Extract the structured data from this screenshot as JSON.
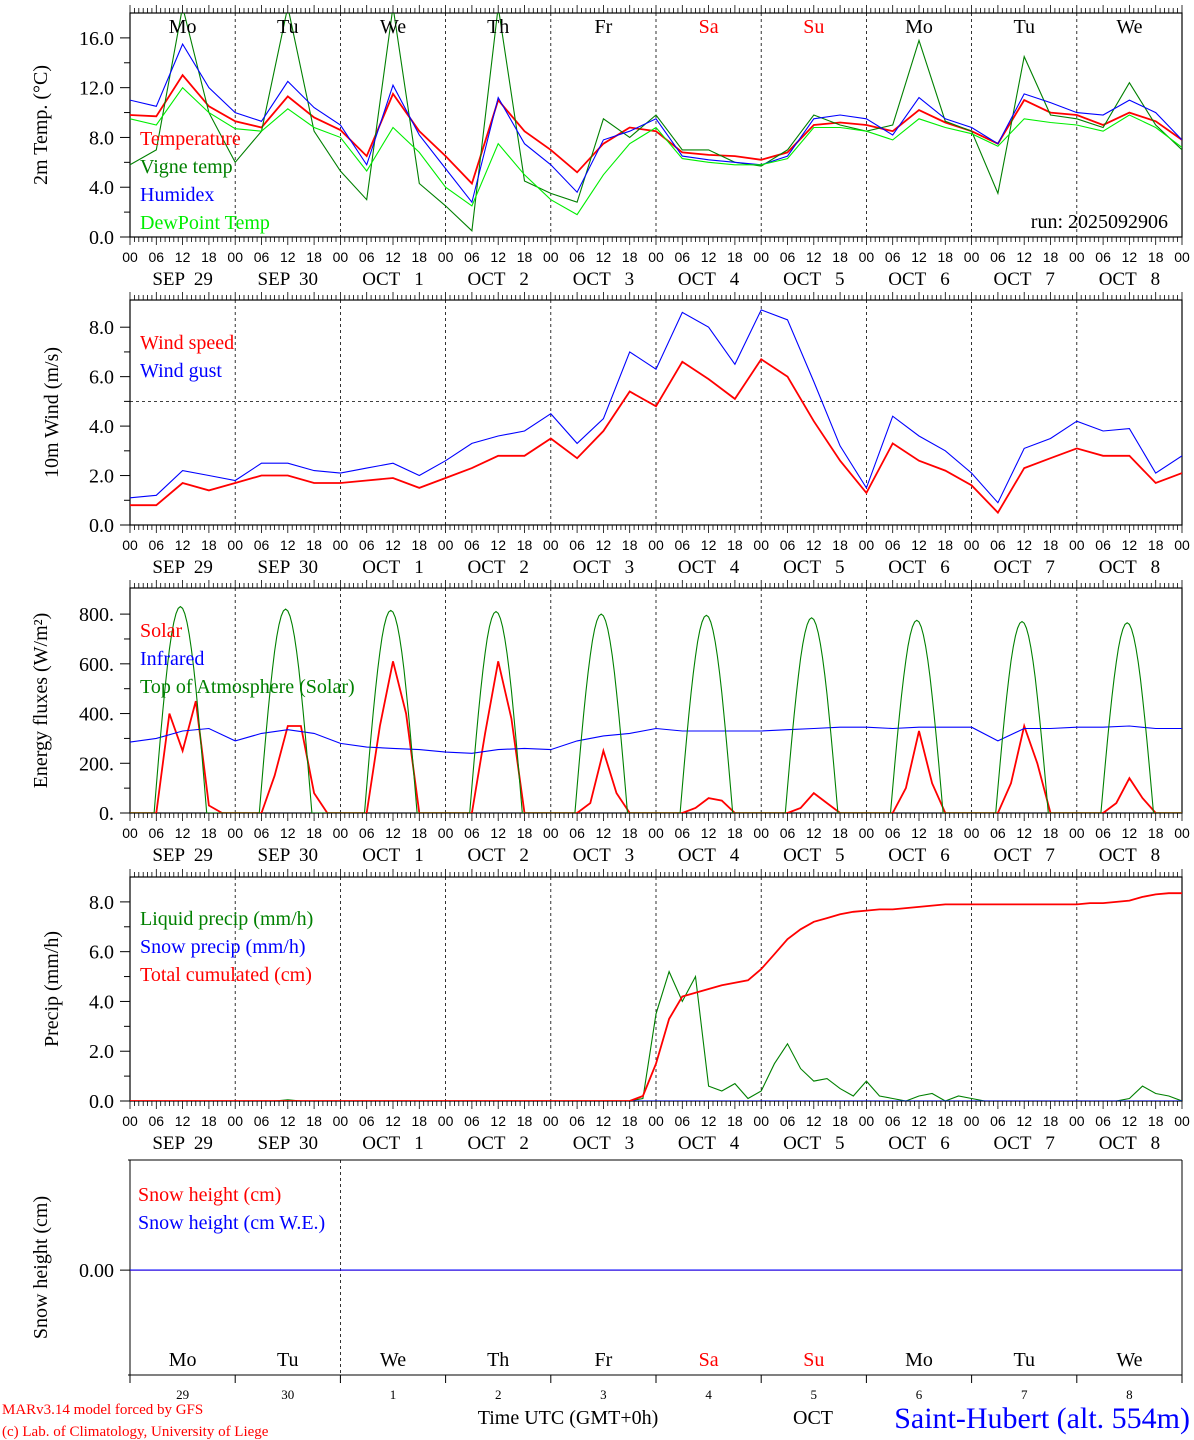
{
  "chart_data": [
    {
      "type": "line",
      "id": "temp",
      "ylabel": "2m Temp. (°C)",
      "ylim": [
        0,
        18
      ],
      "yticks": [
        "0.0",
        "4.0",
        "8.0",
        "12.0",
        "16.0"
      ],
      "ytick_values": [
        0,
        4,
        8,
        12,
        16
      ],
      "x_step_hours": 6,
      "annotation": "run: 2025092906",
      "series": [
        {
          "name": "Temperature",
          "color": "#ff0000",
          "values": [
            9.8,
            9.7,
            13,
            10.5,
            9.3,
            8.8,
            11.3,
            9.6,
            8.6,
            6.5,
            11.5,
            8.5,
            6.5,
            4.3,
            11,
            8.5,
            7,
            5.2,
            7.5,
            8.8,
            8.5,
            6.8,
            6.6,
            6.5,
            6.2,
            6.8,
            9,
            9.2,
            9,
            8.5,
            10.2,
            9.2,
            8.5,
            7.5,
            11,
            10,
            9.8,
            9,
            10,
            9.3,
            7.8
          ]
        },
        {
          "name": "Vigne temp",
          "color": "#008000",
          "values": [
            5.8,
            7,
            18.5,
            10,
            6,
            8.5,
            18.5,
            8.5,
            5.3,
            3,
            18.5,
            4.3,
            2.5,
            0.5,
            18.5,
            4.5,
            3.5,
            2.8,
            9.5,
            8,
            9.8,
            7,
            7,
            6,
            5.7,
            7,
            9.8,
            9,
            8.5,
            9,
            15.8,
            9.3,
            8.5,
            3.5,
            14.5,
            9.8,
            9.5,
            8.8,
            12.4,
            9,
            7
          ]
        },
        {
          "name": "Humidex",
          "color": "#0000ff",
          "values": [
            11,
            10.5,
            15.5,
            12,
            10,
            9.3,
            12.5,
            10.4,
            9,
            5.8,
            12.2,
            8.2,
            5.5,
            2.8,
            11.2,
            7.5,
            5.8,
            3.6,
            7.8,
            8.5,
            9.5,
            6.5,
            6.2,
            6,
            5.8,
            6.5,
            9.5,
            9.8,
            9.5,
            8.2,
            11.2,
            9.5,
            8.8,
            7.5,
            11.5,
            10.8,
            10,
            9.8,
            11,
            10,
            7.8
          ]
        },
        {
          "name": "DewPoint Temp",
          "color": "#00ee00",
          "values": [
            9.5,
            9,
            12,
            10,
            8.7,
            8.5,
            10.3,
            8.8,
            8,
            5.3,
            8.8,
            6.8,
            4,
            2.5,
            7.5,
            5,
            3,
            1.8,
            5,
            7.5,
            8.8,
            6.3,
            6,
            5.8,
            5.8,
            6.3,
            8.8,
            8.8,
            8.5,
            7.8,
            9.5,
            8.8,
            8.3,
            7.3,
            9.5,
            9.2,
            9,
            8.5,
            9.8,
            8.8,
            7.2
          ]
        }
      ]
    },
    {
      "type": "line",
      "id": "wind",
      "ylabel": "10m Wind (m/s)",
      "ylim": [
        0,
        9.1
      ],
      "yticks": [
        "0.0",
        "2.0",
        "4.0",
        "6.0",
        "8.0"
      ],
      "ytick_values": [
        0,
        2,
        4,
        6,
        8
      ],
      "reference_line": 5,
      "x_step_hours": 6,
      "series": [
        {
          "name": "Wind speed",
          "color": "#ff0000",
          "values": [
            0.8,
            0.8,
            1.7,
            1.4,
            1.7,
            2,
            2,
            1.7,
            1.7,
            1.8,
            1.9,
            1.5,
            1.9,
            2.3,
            2.8,
            2.8,
            3.5,
            2.7,
            3.8,
            5.4,
            4.8,
            6.6,
            5.9,
            5.1,
            6.7,
            6,
            4.2,
            2.6,
            1.3,
            3.3,
            2.6,
            2.2,
            1.6,
            0.5,
            2.3,
            2.7,
            3.1,
            2.8,
            2.8,
            1.7,
            2.1
          ]
        },
        {
          "name": "Wind gust",
          "color": "#0000ff",
          "values": [
            1.1,
            1.2,
            2.2,
            2,
            1.8,
            2.5,
            2.5,
            2.2,
            2.1,
            2.3,
            2.5,
            2,
            2.6,
            3.3,
            3.6,
            3.8,
            4.5,
            3.3,
            4.3,
            7,
            6.3,
            8.6,
            8,
            6.5,
            8.7,
            8.3,
            5.8,
            3.2,
            1.5,
            4.4,
            3.6,
            3,
            2.1,
            0.9,
            3.1,
            3.5,
            4.2,
            3.8,
            3.9,
            2.1,
            2.8
          ]
        }
      ]
    },
    {
      "type": "line",
      "id": "energy",
      "ylabel": "Energy fluxes (W/m²)",
      "ylim": [
        0,
        905
      ],
      "yticks": [
        "0.",
        "200.",
        "400.",
        "600.",
        "800."
      ],
      "ytick_values": [
        0,
        200,
        400,
        600,
        800
      ],
      "series": [
        {
          "name": "Solar",
          "color": "#ff0000",
          "x_step_hours": 3,
          "values": [
            0,
            0,
            0,
            400,
            250,
            450,
            30,
            0,
            0,
            0,
            0,
            150,
            350,
            350,
            80,
            0,
            0,
            0,
            0,
            350,
            610,
            400,
            0,
            0,
            0,
            0,
            0,
            320,
            610,
            380,
            0,
            0,
            0,
            0,
            0,
            40,
            250,
            80,
            0,
            0,
            0,
            0,
            0,
            20,
            60,
            50,
            0,
            0,
            0,
            0,
            0,
            20,
            80,
            40,
            0,
            0,
            0,
            0,
            0,
            100,
            330,
            120,
            0,
            0,
            0,
            0,
            0,
            120,
            350,
            200,
            0,
            0,
            0,
            0,
            0,
            40,
            140,
            60,
            0,
            0,
            0
          ]
        },
        {
          "name": "Infrared",
          "color": "#0000ff",
          "x_step_hours": 6,
          "values": [
            285,
            300,
            330,
            340,
            290,
            320,
            335,
            320,
            280,
            265,
            260,
            255,
            245,
            240,
            255,
            260,
            255,
            290,
            310,
            320,
            340,
            330,
            330,
            330,
            330,
            335,
            340,
            345,
            345,
            340,
            345,
            345,
            345,
            290,
            340,
            340,
            345,
            345,
            350,
            340,
            340
          ]
        },
        {
          "name": "Top of Atmosphere (Solar)",
          "color": "#008000",
          "x_step_hours": 1,
          "daily_peaks": [
            830,
            820,
            815,
            810,
            800,
            795,
            785,
            775,
            770,
            765
          ],
          "daylight_hours": [
            5.5,
            17.5
          ]
        }
      ]
    },
    {
      "type": "line",
      "id": "precip",
      "ylabel": "Precip (mm/h)",
      "ylim": [
        0,
        9
      ],
      "yticks": [
        "0.0",
        "2.0",
        "4.0",
        "6.0",
        "8.0"
      ],
      "ytick_values": [
        0,
        2,
        4,
        6,
        8
      ],
      "x_step_hours": 3,
      "series": [
        {
          "name": "Liquid precip (mm/h)",
          "color": "#008000",
          "values": [
            0,
            0,
            0,
            0,
            0,
            0,
            0,
            0,
            0,
            0,
            0,
            0,
            0.05,
            0,
            0,
            0,
            0,
            0,
            0,
            0,
            0,
            0,
            0,
            0,
            0,
            0,
            0,
            0,
            0,
            0,
            0,
            0,
            0,
            0,
            0,
            0,
            0,
            0,
            0,
            0.1,
            3.5,
            5.2,
            4.0,
            5.0,
            0.6,
            0.4,
            0.7,
            0.1,
            0.4,
            1.5,
            2.3,
            1.3,
            0.8,
            0.9,
            0.5,
            0.2,
            0.8,
            0.2,
            0.1,
            0,
            0.2,
            0.3,
            0,
            0.2,
            0.1,
            0,
            0,
            0,
            0,
            0,
            0,
            0,
            0,
            0,
            0,
            0,
            0.1,
            0.6,
            0.3,
            0.2,
            0
          ]
        },
        {
          "name": "Snow precip (mm/h)",
          "color": "#0000ff",
          "values": [
            0,
            0,
            0,
            0,
            0,
            0,
            0,
            0,
            0,
            0,
            0,
            0,
            0,
            0,
            0,
            0,
            0,
            0,
            0,
            0,
            0,
            0,
            0,
            0,
            0,
            0,
            0,
            0,
            0,
            0,
            0,
            0,
            0,
            0,
            0,
            0,
            0,
            0,
            0,
            0,
            0,
            0,
            0,
            0,
            0,
            0,
            0,
            0,
            0,
            0,
            0,
            0,
            0,
            0,
            0,
            0,
            0,
            0,
            0,
            0,
            0,
            0,
            0,
            0,
            0,
            0,
            0,
            0,
            0,
            0,
            0,
            0,
            0,
            0,
            0,
            0,
            0,
            0,
            0,
            0,
            0
          ]
        },
        {
          "name": "Total cumulated (cm)",
          "color": "#ff0000",
          "values": [
            0,
            0,
            0,
            0,
            0,
            0,
            0,
            0,
            0,
            0,
            0,
            0,
            0,
            0,
            0,
            0,
            0,
            0,
            0,
            0,
            0,
            0,
            0,
            0,
            0,
            0,
            0,
            0,
            0,
            0,
            0,
            0,
            0,
            0,
            0,
            0,
            0,
            0,
            0,
            0.2,
            1.5,
            3.3,
            4.2,
            4.35,
            4.5,
            4.65,
            4.75,
            4.85,
            5.3,
            5.9,
            6.5,
            6.9,
            7.2,
            7.35,
            7.5,
            7.6,
            7.65,
            7.7,
            7.7,
            7.75,
            7.8,
            7.85,
            7.9,
            7.9,
            7.9,
            7.9,
            7.9,
            7.9,
            7.9,
            7.9,
            7.9,
            7.9,
            7.9,
            7.95,
            7.95,
            8.0,
            8.05,
            8.2,
            8.3,
            8.35,
            8.35
          ]
        }
      ]
    },
    {
      "type": "line",
      "id": "snow",
      "ylabel": "Snow height (cm)",
      "ylim": [
        -1,
        1.05
      ],
      "yticks": [
        "0.00"
      ],
      "ytick_values": [
        0
      ],
      "x_step_hours": 240,
      "series": [
        {
          "name": "Snow height (cm)",
          "color": "#ff0000",
          "values": [
            0,
            0
          ]
        },
        {
          "name": "Snow height (cm W.E.)",
          "color": "#0000ff",
          "values": [
            0,
            0
          ]
        }
      ]
    }
  ],
  "x_axis": {
    "hour_labels": [
      "00",
      "06",
      "12",
      "18"
    ],
    "final_hour_label": "00",
    "dates": [
      "SEP  29",
      "SEP  30",
      "OCT   1",
      "OCT   2",
      "OCT   3",
      "OCT   4",
      "OCT   5",
      "OCT   6",
      "OCT   7",
      "OCT   8"
    ],
    "weekdays": [
      "Mo",
      "Tu",
      "We",
      "Th",
      "Fr",
      "Sa",
      "Su",
      "Mo",
      "Tu",
      "We"
    ],
    "weekend_flags": [
      false,
      false,
      false,
      false,
      false,
      true,
      true,
      false,
      false,
      false
    ],
    "day_numbers": [
      "29",
      "30",
      "1",
      "2",
      "3",
      "4",
      "5",
      "6",
      "7",
      "8"
    ],
    "title": "Time UTC (GMT+0h)",
    "stray_label": "OCT"
  },
  "colors": {
    "weekday": "#000000",
    "weekend": "#ff0000",
    "station": "#0000ff",
    "credits": "#ff0000"
  },
  "footer": {
    "credit_line1": "MARv3.14 model forced by GFS",
    "credit_line2": "(c) Lab. of Climatology, University of Liege",
    "station": "Saint-Hubert (alt. 554m)"
  }
}
